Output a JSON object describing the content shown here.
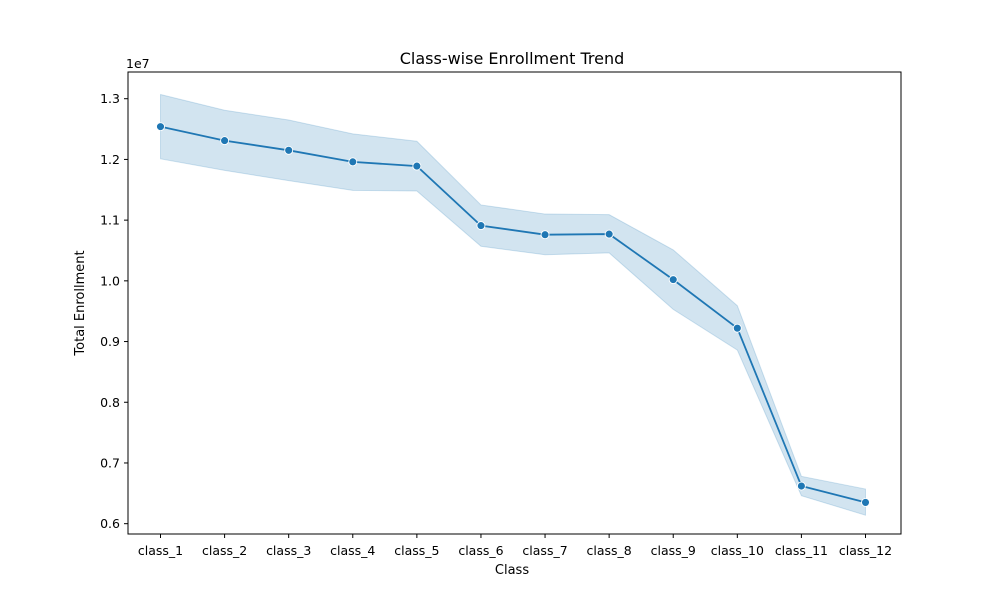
{
  "chart_data": {
    "type": "line",
    "title": "Class-wise Enrollment Trend",
    "xlabel": "Class",
    "ylabel": "Total Enrollment",
    "y_offset_label": "1e7",
    "categories": [
      "class_1",
      "class_2",
      "class_3",
      "class_4",
      "class_5",
      "class_6",
      "class_7",
      "class_8",
      "class_9",
      "class_10",
      "class_11",
      "class_12"
    ],
    "series": [
      {
        "values": [
          12540000,
          12310000,
          12150000,
          11960000,
          11890000,
          10910000,
          10760000,
          10770000,
          10020000,
          9220000,
          6620000,
          6350000
        ],
        "ci_upper": [
          13070000,
          12810000,
          12650000,
          12420000,
          12300000,
          11250000,
          11100000,
          11090000,
          10510000,
          9590000,
          6780000,
          6570000
        ],
        "ci_lower": [
          12010000,
          11820000,
          11650000,
          11490000,
          11480000,
          10570000,
          10430000,
          10460000,
          9530000,
          8860000,
          6460000,
          6140000
        ],
        "color": "#1f77b4",
        "band_color": "#1f77b4",
        "marker": "circle"
      }
    ],
    "ylim": [
      5830000,
      13440000
    ],
    "yticks": [
      6000000,
      7000000,
      8000000,
      9000000,
      10000000,
      11000000,
      12000000,
      13000000
    ],
    "ytick_labels": [
      "0.6",
      "0.7",
      "0.8",
      "0.9",
      "1.0",
      "1.1",
      "1.2",
      "1.3"
    ],
    "grid": false,
    "legend": "none"
  }
}
